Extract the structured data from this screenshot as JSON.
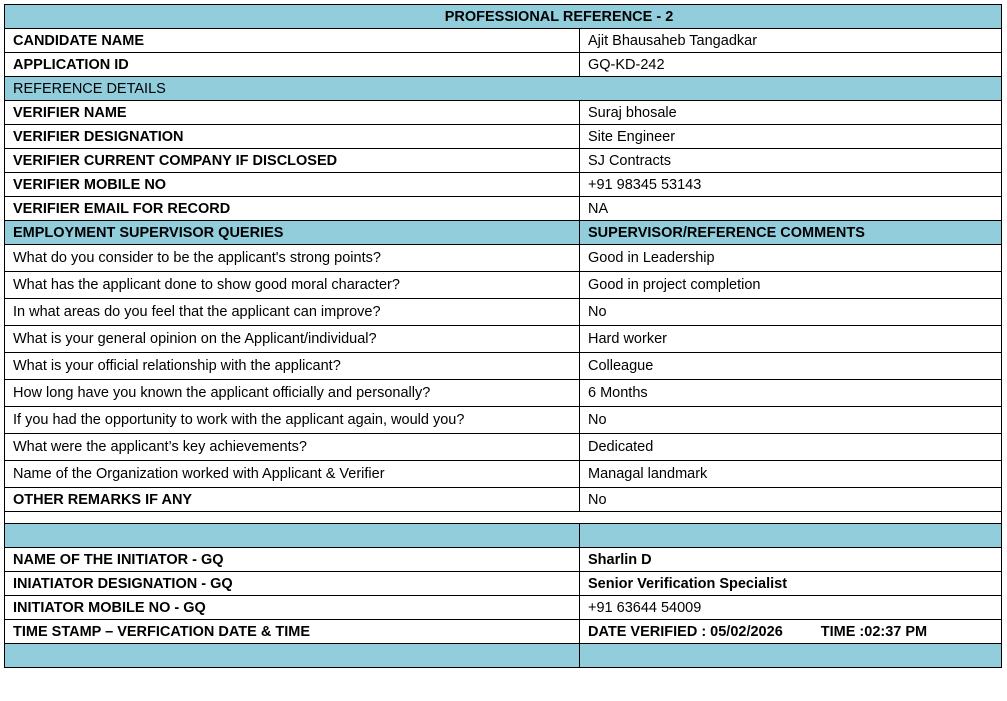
{
  "title": "PROFESSIONAL REFERENCE - 2",
  "candidate": [
    {
      "label": "CANDIDATE  NAME",
      "value": "Ajit Bhausaheb Tangadkar"
    },
    {
      "label": "APPLICATION ID",
      "value": "GQ-KD-242"
    }
  ],
  "reference_section": "REFERENCE DETAILS",
  "reference": [
    {
      "label": "VERIFIER NAME",
      "value": "Suraj bhosale"
    },
    {
      "label": "VERIFIER DESIGNATION",
      "value": "Site Engineer"
    },
    {
      "label": "VERIFIER CURRENT COMPANY IF DISCLOSED",
      "value": "SJ Contracts"
    },
    {
      "label": "VERIFIER MOBILE NO",
      "value": "+91 98345 53143"
    },
    {
      "label": "VERIFIER EMAIL FOR RECORD",
      "value": "NA"
    }
  ],
  "queries_header": {
    "left": "EMPLOYMENT SUPERVISOR QUERIES",
    "right": "SUPERVISOR/REFERENCE COMMENTS"
  },
  "queries": [
    {
      "q": "What do you consider to be the applicant's strong points?",
      "a": "Good in Leadership"
    },
    {
      "q": "What has the applicant done to show good moral character?",
      "a": "Good in project completion"
    },
    {
      "q": "In what areas do you feel that the applicant can improve?",
      "a": "No"
    },
    {
      "q": "What is your general opinion on the Applicant/individual?",
      "a": "Hard worker"
    },
    {
      "q": "What is your official relationship with the applicant?",
      "a": "Colleague"
    },
    {
      "q": "How long have you known the applicant officially and personally?",
      "a": "6 Months"
    },
    {
      "q": "If you had the opportunity to work with the applicant again, would you?",
      "a": "No"
    },
    {
      "q": "What were the applicant’s key achievements?",
      "a": "Dedicated"
    },
    {
      "q": "Name of the Organization worked with Applicant & Verifier",
      "a": "Managal landmark"
    }
  ],
  "other_remarks": {
    "label": "OTHER REMARKS IF ANY",
    "value": "No"
  },
  "initiator": [
    {
      "label": "NAME OF THE INITIATOR - GQ",
      "value": "Sharlin D"
    },
    {
      "label": "INIATIATOR DESIGNATION - GQ",
      "value": "Senior Verification Specialist"
    },
    {
      "label": "INITIATOR MOBILE NO - GQ",
      "value": "+91 63644 54009"
    }
  ],
  "timestamp": {
    "label": "TIME STAMP – VERFICATION DATE & TIME",
    "date": "DATE VERIFIED : 05/02/2026",
    "time": "TIME :02:37 PM"
  },
  "colors": {
    "header_fill": "#92cddc",
    "border": "#000000"
  }
}
